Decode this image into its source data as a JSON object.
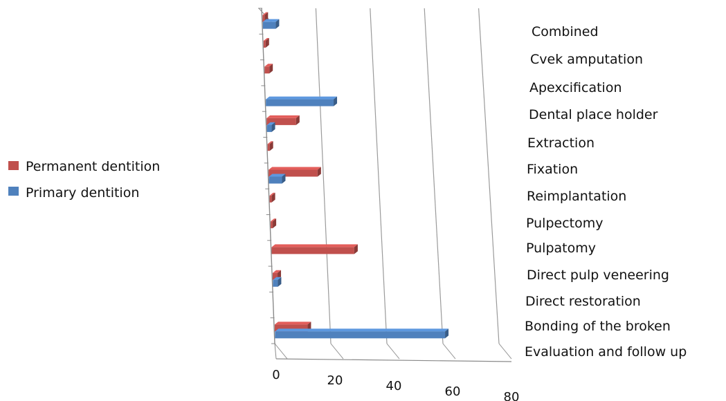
{
  "chart_data": {
    "type": "bar",
    "orientation": "horizontal",
    "categories": [
      "Evaluation and follow up",
      "Bonding of the broken",
      "Direct restoration",
      "Direct pulp veneering",
      "Pulpatomy",
      "Pulpectomy",
      "Reimplantation",
      "Fixation",
      "Extraction",
      "Dental place holder",
      "Apexcification",
      "Cvek amputation",
      "Combined"
    ],
    "series": [
      {
        "name": "Permanent dentition",
        "color": "#c0504d",
        "values": [
          12,
          0,
          2,
          30,
          1,
          1,
          18,
          1,
          11,
          0,
          2,
          1,
          1
        ]
      },
      {
        "name": "Primary dentition",
        "color": "#4f81bd",
        "values": [
          61,
          0,
          2,
          0,
          0,
          0,
          5,
          0,
          2,
          25,
          0,
          0,
          5
        ]
      }
    ],
    "xticks": [
      "0",
      "20",
      "40",
      "60",
      "80"
    ],
    "xlim": [
      0,
      80
    ],
    "grid": true,
    "legend_position": "left"
  }
}
